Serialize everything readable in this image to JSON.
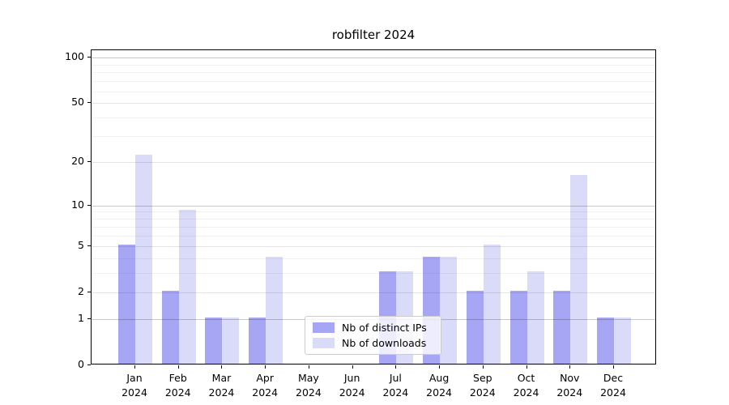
{
  "chart_data": {
    "type": "bar",
    "title": "robfilter 2024",
    "categories": [
      "Jan 2024",
      "Feb 2024",
      "Mar 2024",
      "Apr 2024",
      "May 2024",
      "Jun 2024",
      "Jul 2024",
      "Aug 2024",
      "Sep 2024",
      "Oct 2024",
      "Nov 2024",
      "Dec 2024"
    ],
    "x_labels_line1": [
      "Jan",
      "Feb",
      "Mar",
      "Apr",
      "May",
      "Jun",
      "Jul",
      "Aug",
      "Sep",
      "Oct",
      "Nov",
      "Dec"
    ],
    "x_labels_line2": [
      "2024",
      "2024",
      "2024",
      "2024",
      "2024",
      "2024",
      "2024",
      "2024",
      "2024",
      "2024",
      "2024",
      "2024"
    ],
    "series": [
      {
        "name": "Nb of distinct IPs",
        "color": "#a6a6f5",
        "values": [
          5,
          2,
          1,
          1,
          0,
          0,
          3,
          4,
          2,
          2,
          2,
          1
        ]
      },
      {
        "name": "Nb of downloads",
        "color": "#dadaf9",
        "values": [
          22,
          9,
          1,
          4,
          0,
          0,
          3,
          4,
          5,
          3,
          16,
          1
        ]
      }
    ],
    "y_scale": "log10(1+v)",
    "ylim": [
      0,
      112
    ],
    "y_ticks": [
      0,
      1,
      2,
      5,
      10,
      20,
      50,
      100
    ],
    "gridlines_major": [
      1,
      10,
      100
    ],
    "gridlines_mid": [
      2,
      5,
      20,
      50
    ],
    "gridlines_minor": [
      3,
      4,
      6,
      7,
      8,
      9,
      30,
      40,
      60,
      70,
      80,
      90
    ],
    "grid": true,
    "legend_position": "inside-lower-center",
    "colors": {
      "axis": "#000000",
      "grid_major": "#c8c8c8",
      "grid_mid": "#e4e4e4",
      "grid_minor": "#f2f2f2",
      "background": "#ffffff"
    }
  }
}
